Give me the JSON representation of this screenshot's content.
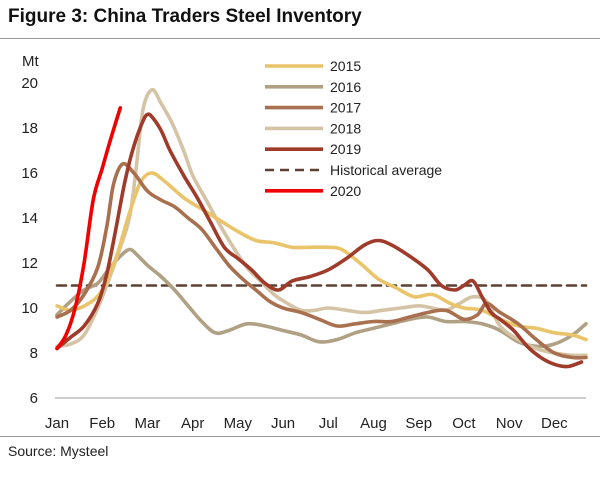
{
  "figure": {
    "title": "Figure 3: China Traders Steel Inventory",
    "source": "Source:  Mysteel"
  },
  "chart_data": {
    "type": "line",
    "title": "Figure 3: China Traders Steel Inventory",
    "ylabel": "Mt",
    "xlabel": "",
    "ylim": [
      6,
      20
    ],
    "yticks": [
      6,
      8,
      10,
      12,
      14,
      16,
      18,
      20
    ],
    "x_domain": [
      0,
      11.7
    ],
    "xticks": [
      {
        "label": "Jan",
        "x": 0
      },
      {
        "label": "Feb",
        "x": 1
      },
      {
        "label": "Mar",
        "x": 2
      },
      {
        "label": "Apr",
        "x": 3
      },
      {
        "label": "May",
        "x": 4
      },
      {
        "label": "Jun",
        "x": 5
      },
      {
        "label": "Jul",
        "x": 6
      },
      {
        "label": "Aug",
        "x": 7
      },
      {
        "label": "Sep",
        "x": 8
      },
      {
        "label": "Oct",
        "x": 9
      },
      {
        "label": "Nov",
        "x": 10
      },
      {
        "label": "Dec",
        "x": 11
      }
    ],
    "legend_position": "top-center",
    "series": [
      {
        "name": "2015",
        "color": "#E9C46A",
        "x": [
          0,
          0.3,
          0.7,
          1.0,
          1.3,
          1.6,
          1.85,
          2.1,
          2.4,
          2.8,
          3.2,
          3.6,
          4.0,
          4.4,
          4.8,
          5.2,
          5.6,
          6.0,
          6.3,
          6.7,
          7.1,
          7.5,
          7.9,
          8.3,
          8.7,
          9.0,
          9.4,
          9.8,
          10.2,
          10.6,
          11.0,
          11.4,
          11.7
        ],
        "values": [
          10.1,
          9.9,
          10.2,
          10.8,
          12.2,
          14.2,
          15.6,
          16.0,
          15.6,
          14.9,
          14.4,
          13.9,
          13.4,
          13.0,
          12.9,
          12.7,
          12.7,
          12.7,
          12.6,
          12.0,
          11.3,
          10.9,
          10.5,
          10.6,
          10.2,
          10.0,
          9.9,
          9.5,
          9.2,
          9.1,
          8.9,
          8.8,
          8.6
        ]
      },
      {
        "name": "2016",
        "color": "#B0A084",
        "x": [
          0,
          0.3,
          0.6,
          0.9,
          1.1,
          1.35,
          1.6,
          1.8,
          2.0,
          2.3,
          2.6,
          2.9,
          3.2,
          3.5,
          3.8,
          4.2,
          4.6,
          5.0,
          5.4,
          5.8,
          6.2,
          6.6,
          7.0,
          7.4,
          7.8,
          8.2,
          8.6,
          9.0,
          9.4,
          9.8,
          10.2,
          10.6,
          11.0,
          11.4,
          11.7
        ],
        "values": [
          9.7,
          10.3,
          10.8,
          11.1,
          11.6,
          12.2,
          12.6,
          12.3,
          11.9,
          11.4,
          10.8,
          10.1,
          9.4,
          8.9,
          9.0,
          9.3,
          9.2,
          9.0,
          8.8,
          8.5,
          8.6,
          8.9,
          9.1,
          9.3,
          9.5,
          9.6,
          9.4,
          9.4,
          9.3,
          9.0,
          8.5,
          8.3,
          8.4,
          8.8,
          9.3
        ]
      },
      {
        "name": "2017",
        "color": "#A8704F",
        "x": [
          0,
          0.3,
          0.6,
          0.9,
          1.1,
          1.25,
          1.45,
          1.7,
          2.0,
          2.3,
          2.6,
          2.9,
          3.2,
          3.5,
          3.8,
          4.1,
          4.4,
          4.7,
          5.0,
          5.4,
          5.8,
          6.2,
          6.6,
          7.0,
          7.4,
          7.8,
          8.2,
          8.6,
          9.0,
          9.3,
          9.5,
          9.8,
          10.2,
          10.6,
          11.0,
          11.4,
          11.7
        ],
        "values": [
          9.6,
          9.9,
          10.6,
          11.8,
          13.6,
          15.5,
          16.4,
          16.0,
          15.2,
          14.8,
          14.5,
          14.0,
          13.5,
          12.7,
          11.9,
          11.3,
          10.8,
          10.3,
          10.0,
          9.8,
          9.5,
          9.2,
          9.3,
          9.4,
          9.4,
          9.6,
          9.8,
          9.9,
          9.5,
          9.7,
          10.2,
          9.8,
          9.3,
          8.6,
          8.0,
          7.8,
          7.8
        ]
      },
      {
        "name": "2018",
        "color": "#D5C3A6",
        "x": [
          0,
          0.3,
          0.6,
          0.9,
          1.1,
          1.35,
          1.6,
          1.75,
          1.9,
          2.1,
          2.3,
          2.55,
          2.8,
          3.0,
          3.3,
          3.6,
          3.9,
          4.2,
          4.5,
          4.8,
          5.1,
          5.4,
          5.7,
          6.0,
          6.4,
          6.8,
          7.2,
          7.6,
          8.0,
          8.3,
          8.6,
          8.9,
          9.2,
          9.5,
          9.8,
          10.2,
          10.6,
          11.0,
          11.4,
          11.7
        ],
        "values": [
          8.3,
          8.4,
          8.8,
          10.0,
          11.0,
          12.4,
          14.0,
          16.2,
          18.8,
          19.7,
          19.1,
          18.2,
          17.0,
          15.9,
          14.8,
          13.7,
          12.7,
          11.8,
          11.2,
          10.6,
          10.2,
          9.9,
          9.9,
          10.0,
          9.9,
          9.8,
          9.9,
          10.0,
          10.1,
          10.0,
          9.9,
          10.2,
          10.5,
          10.3,
          9.2,
          8.6,
          8.2,
          8.0,
          7.9,
          7.9
        ]
      },
      {
        "name": "2019",
        "color": "#9E3B2A",
        "x": [
          0,
          0.3,
          0.6,
          0.9,
          1.1,
          1.3,
          1.5,
          1.7,
          1.9,
          2.0,
          2.1,
          2.3,
          2.5,
          2.8,
          3.1,
          3.4,
          3.7,
          4.0,
          4.3,
          4.6,
          4.9,
          5.2,
          5.6,
          6.0,
          6.4,
          6.8,
          7.1,
          7.4,
          7.8,
          8.2,
          8.5,
          8.8,
          9.0,
          9.2,
          9.4,
          9.6,
          9.8,
          10.1,
          10.4,
          10.7,
          11.0,
          11.3,
          11.6
        ],
        "values": [
          8.2,
          8.7,
          9.2,
          10.2,
          11.5,
          13.5,
          15.6,
          17.2,
          18.3,
          18.6,
          18.5,
          17.9,
          17.0,
          15.9,
          14.9,
          13.8,
          12.7,
          12.2,
          11.7,
          11.1,
          10.8,
          11.2,
          11.4,
          11.7,
          12.2,
          12.8,
          13.0,
          12.8,
          12.3,
          11.7,
          11.0,
          10.8,
          11.0,
          11.2,
          10.5,
          9.8,
          9.5,
          9.0,
          8.3,
          7.8,
          7.5,
          7.4,
          7.6
        ]
      },
      {
        "name": "Historical average",
        "color": "#5C4033",
        "dashed": true,
        "x": [
          0,
          11.7
        ],
        "values": [
          11.0,
          11.0
        ]
      },
      {
        "name": "2020",
        "color": "#F00000",
        "x": [
          0,
          0.2,
          0.4,
          0.6,
          0.8,
          1.0,
          1.2,
          1.4
        ],
        "values": [
          8.2,
          8.8,
          10.0,
          12.0,
          14.8,
          16.2,
          17.6,
          18.9
        ]
      }
    ]
  }
}
